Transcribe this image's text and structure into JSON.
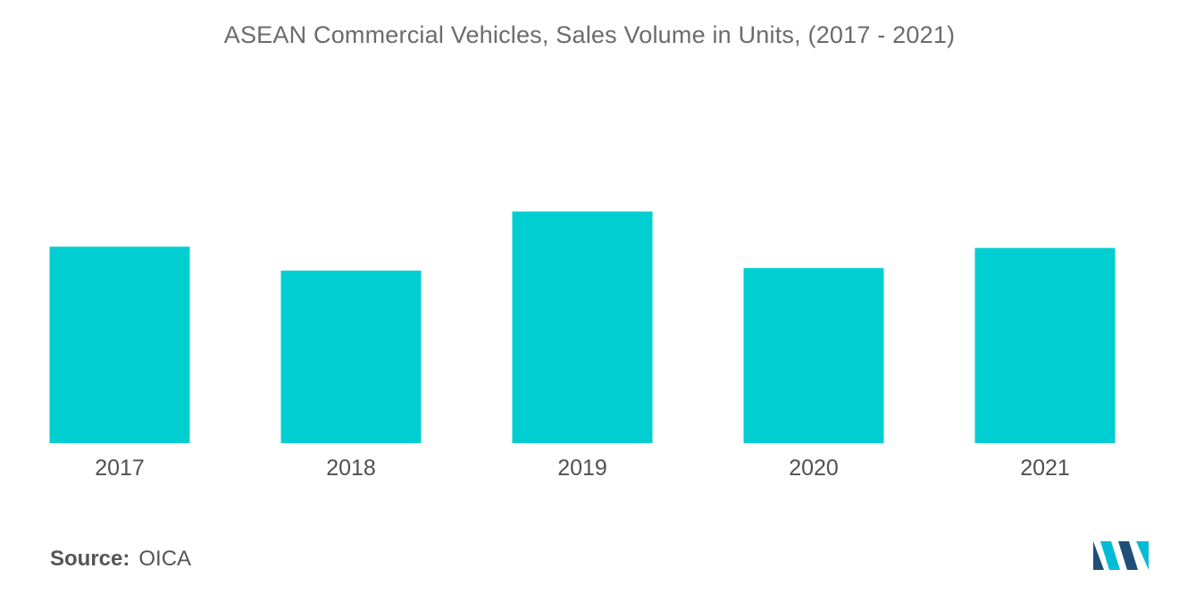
{
  "chart_data": {
    "type": "bar",
    "title": "ASEAN Commercial Vehicles, Sales Volume in Units, (2017 - 2021)",
    "categories": [
      "2017",
      "2018",
      "2019",
      "2020",
      "2021"
    ],
    "values": [
      78,
      68.5,
      92,
      69.5,
      77.5
    ],
    "xlabel": "",
    "ylabel": "",
    "ylim": [
      0,
      165
    ],
    "grid": false,
    "legend": "none",
    "bar_color": "#00ced1"
  },
  "source": {
    "label": "Source:",
    "value": "OICA"
  },
  "colors": {
    "logo_dark": "#1f4e79",
    "logo_teal": "#00bcd4"
  }
}
